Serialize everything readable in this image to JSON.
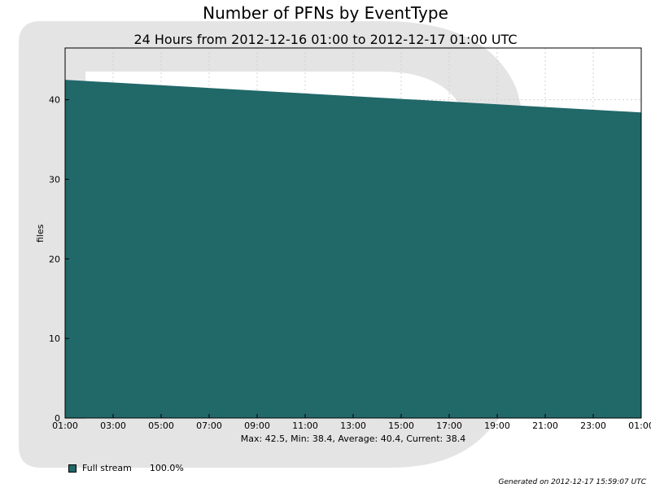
{
  "chart_data": {
    "type": "area",
    "title": "Number of PFNs by EventType",
    "subtitle": "24 Hours from 2012-12-16 01:00 to 2012-12-17 01:00 UTC",
    "ylabel": "files",
    "xlabel": "",
    "x_ticks": [
      "01:00",
      "03:00",
      "05:00",
      "07:00",
      "09:00",
      "11:00",
      "13:00",
      "15:00",
      "17:00",
      "19:00",
      "21:00",
      "23:00",
      "01:00"
    ],
    "y_ticks": [
      0,
      10,
      20,
      30,
      40
    ],
    "ylim": [
      0,
      46.5
    ],
    "xlim_hours": [
      0,
      24
    ],
    "grid": true,
    "series": [
      {
        "name": "Full stream",
        "color": "#216869",
        "x_hours": [
          0,
          24
        ],
        "values": [
          42.5,
          38.4
        ]
      }
    ],
    "legend": [
      {
        "label": "Full stream",
        "percent": "100.0%",
        "color": "#216869"
      }
    ],
    "stats_text": "Max: 42.5, Min: 38.4, Average: 40.4, Current: 38.4"
  },
  "watermark_color": "#e4e4e4",
  "footer": "Generated on 2012-12-17 15:59:07 UTC"
}
